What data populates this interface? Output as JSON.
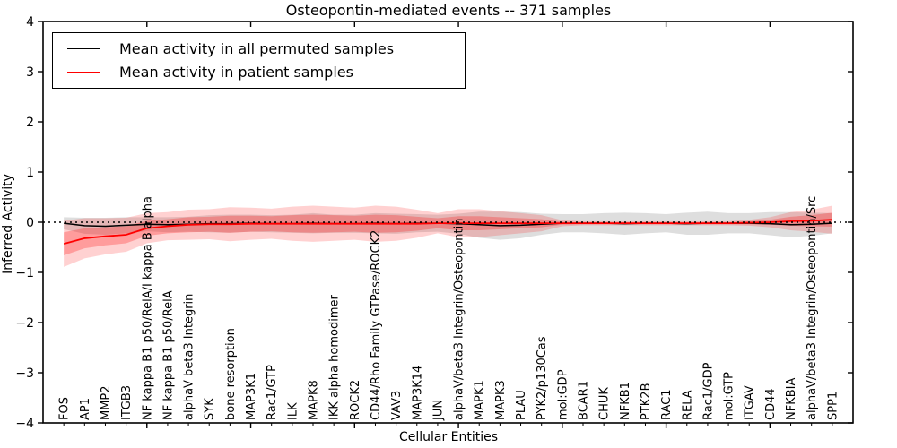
{
  "title": "Osteopontin-mediated events -- 371 samples",
  "axes": {
    "xlabel": "Cellular Entities",
    "ylabel": "Inferred Activity",
    "ytick_labels": [
      "4",
      "3",
      "2",
      "1",
      "0",
      "−1",
      "−2",
      "−3",
      "−4"
    ],
    "ytick_values": [
      4,
      3,
      2,
      1,
      0,
      -1,
      -2,
      -3,
      -4
    ]
  },
  "legend": {
    "entries": [
      {
        "label": "Mean activity in all permuted samples",
        "color": "#000000"
      },
      {
        "label": "Mean activity in patient samples",
        "color": "#ff0000"
      }
    ]
  },
  "chart_data": {
    "type": "line",
    "title": "Osteopontin-mediated events -- 371 samples",
    "xlabel": "Cellular Entities",
    "ylabel": "Inferred Activity",
    "ylim": [
      -4,
      4
    ],
    "grid": false,
    "legend_position": "upper left",
    "reference_line_y": 0,
    "categories": [
      "FOS",
      "AP1",
      "MMP2",
      "ITGB3",
      "NF kappa B1 p50/RelA/I kappa B alpha",
      "NF kappa B1 p50/RelA",
      "alphaV beta3 Integrin",
      "SYK",
      "bone resorption",
      "MAP3K1",
      "Rac1/GTP",
      "ILK",
      "MAPK8",
      "IKK alpha homodimer",
      "ROCK2",
      "CD44/Rho Family GTPase/ROCK2",
      "VAV3",
      "MAP3K14",
      "JUN",
      "alphaV/beta3 Integrin/Osteopontin",
      "MAPK1",
      "MAPK3",
      "PLAU",
      "PYK2/p130Cas",
      "mol:GDP",
      "BCAR1",
      "CHUK",
      "NFKB1",
      "PTK2B",
      "RAC1",
      "RELA",
      "Rac1/GDP",
      "mol:GTP",
      "ITGAV",
      "CD44",
      "NFKBIA",
      "alphaV/beta3 Integrin/Osteopontin/Src",
      "SPP1"
    ],
    "series": [
      {
        "name": "Mean activity in all permuted samples",
        "color": "#000000",
        "values": [
          -0.02,
          -0.07,
          -0.08,
          -0.06,
          -0.04,
          -0.05,
          -0.04,
          -0.03,
          -0.03,
          -0.02,
          -0.03,
          -0.03,
          -0.02,
          -0.03,
          -0.03,
          -0.02,
          -0.03,
          -0.02,
          -0.02,
          -0.03,
          -0.05,
          -0.07,
          -0.06,
          -0.04,
          -0.02,
          -0.02,
          -0.02,
          -0.03,
          -0.02,
          -0.02,
          -0.03,
          -0.02,
          -0.02,
          -0.02,
          -0.03,
          -0.05,
          -0.04,
          -0.02
        ],
        "band_halfwidth": [
          0.12,
          0.16,
          0.17,
          0.16,
          0.14,
          0.15,
          0.15,
          0.17,
          0.18,
          0.17,
          0.17,
          0.18,
          0.2,
          0.18,
          0.18,
          0.2,
          0.2,
          0.18,
          0.17,
          0.2,
          0.26,
          0.28,
          0.26,
          0.21,
          0.18,
          0.18,
          0.2,
          0.22,
          0.2,
          0.18,
          0.22,
          0.23,
          0.2,
          0.2,
          0.23,
          0.25,
          0.23,
          0.2
        ],
        "band_color": "#999999"
      },
      {
        "name": "Mean activity in patient samples",
        "color": "#ff0000",
        "values": [
          -0.43,
          -0.32,
          -0.28,
          -0.25,
          -0.12,
          -0.08,
          -0.05,
          -0.04,
          -0.04,
          -0.03,
          -0.03,
          -0.03,
          -0.03,
          -0.03,
          -0.03,
          -0.03,
          -0.03,
          -0.03,
          -0.02,
          -0.02,
          -0.02,
          -0.02,
          -0.02,
          -0.02,
          -0.02,
          -0.02,
          -0.02,
          -0.02,
          -0.02,
          -0.02,
          -0.02,
          -0.02,
          -0.02,
          -0.01,
          0.0,
          0.02,
          0.03,
          0.05
        ],
        "sigma": [
          0.23,
          0.2,
          0.18,
          0.17,
          0.15,
          0.14,
          0.15,
          0.15,
          0.17,
          0.16,
          0.15,
          0.17,
          0.18,
          0.17,
          0.16,
          0.18,
          0.17,
          0.14,
          0.1,
          0.14,
          0.14,
          0.12,
          0.1,
          0.08,
          0.03,
          0.02,
          0.02,
          0.02,
          0.02,
          0.02,
          0.02,
          0.02,
          0.02,
          0.03,
          0.05,
          0.09,
          0.11,
          0.14
        ],
        "band_color": "#ff0000"
      }
    ],
    "subtitle": "371 samples"
  }
}
